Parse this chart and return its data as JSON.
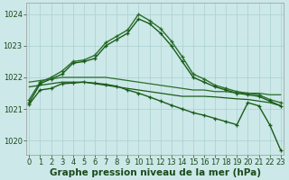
{
  "bg_color": "#cce8e8",
  "grid_color": "#aad0d0",
  "xlabel": "Graphe pression niveau de la mer (hPa)",
  "xlabel_fontsize": 7.5,
  "tick_fontsize": 6.0,
  "ylabel_ticks": [
    1020,
    1021,
    1022,
    1023,
    1024
  ],
  "xlim": [
    -0.3,
    23.3
  ],
  "ylim": [
    1019.55,
    1024.35
  ],
  "series": [
    {
      "x": [
        0,
        1,
        2,
        3,
        4,
        5,
        6,
        7,
        8,
        9,
        10,
        11,
        12,
        13,
        14,
        15,
        16,
        17,
        18,
        19,
        20,
        21,
        22,
        23
      ],
      "y": [
        1021.3,
        1021.85,
        1022.0,
        1022.2,
        1022.5,
        1022.55,
        1022.7,
        1023.1,
        1023.3,
        1023.5,
        1024.0,
        1023.8,
        1023.55,
        1023.15,
        1022.65,
        1022.1,
        1021.95,
        1021.75,
        1021.65,
        1021.55,
        1021.5,
        1021.45,
        1021.3,
        1021.2
      ],
      "color": "#2a6e2a",
      "lw": 1.0,
      "marker": "+"
    },
    {
      "x": [
        0,
        1,
        2,
        3,
        4,
        5,
        6,
        7,
        8,
        9,
        10,
        11,
        12,
        13,
        14,
        15,
        16,
        17,
        18,
        19,
        20,
        21,
        22,
        23
      ],
      "y": [
        1021.2,
        1021.8,
        1021.95,
        1022.1,
        1022.45,
        1022.5,
        1022.6,
        1023.0,
        1023.2,
        1023.4,
        1023.85,
        1023.7,
        1023.4,
        1023.0,
        1022.5,
        1022.0,
        1021.85,
        1021.7,
        1021.6,
        1021.5,
        1021.45,
        1021.4,
        1021.25,
        1021.1
      ],
      "color": "#1a5c1a",
      "lw": 1.0,
      "marker": "+"
    },
    {
      "x": [
        0,
        1,
        2,
        3,
        4,
        5,
        6,
        7,
        8,
        9,
        10,
        11,
        12,
        13,
        14,
        15,
        16,
        17,
        18,
        19,
        20,
        21,
        22,
        23
      ],
      "y": [
        1021.85,
        1021.9,
        1021.95,
        1022.0,
        1022.0,
        1022.0,
        1022.0,
        1022.0,
        1021.95,
        1021.9,
        1021.85,
        1021.8,
        1021.75,
        1021.7,
        1021.65,
        1021.6,
        1021.6,
        1021.55,
        1021.55,
        1021.5,
        1021.5,
        1021.5,
        1021.45,
        1021.45
      ],
      "color": "#2a6e2a",
      "lw": 0.9,
      "marker": null
    },
    {
      "x": [
        0,
        1,
        2,
        3,
        4,
        5,
        6,
        7,
        8,
        9,
        10,
        11,
        12,
        13,
        14,
        15,
        16,
        17,
        18,
        19,
        20,
        21,
        22,
        23
      ],
      "y": [
        1021.7,
        1021.75,
        1021.8,
        1021.85,
        1021.85,
        1021.85,
        1021.8,
        1021.75,
        1021.7,
        1021.65,
        1021.6,
        1021.55,
        1021.5,
        1021.45,
        1021.4,
        1021.4,
        1021.4,
        1021.38,
        1021.35,
        1021.32,
        1021.3,
        1021.25,
        1021.2,
        1021.1
      ],
      "color": "#1a5c1a",
      "lw": 0.9,
      "marker": null
    },
    {
      "x": [
        0,
        1,
        2,
        3,
        4,
        5,
        6,
        7,
        8,
        9,
        10,
        11,
        12,
        13,
        14,
        15,
        16,
        17,
        18,
        19,
        20,
        21,
        22,
        23
      ],
      "y": [
        1021.15,
        1021.6,
        1021.65,
        1021.8,
        1021.82,
        1021.85,
        1021.82,
        1021.78,
        1021.72,
        1021.6,
        1021.5,
        1021.38,
        1021.25,
        1021.12,
        1021.0,
        1020.88,
        1020.8,
        1020.7,
        1020.6,
        1020.5,
        1021.2,
        1021.1,
        1020.5,
        1019.7
      ],
      "color": "#1a5c1a",
      "lw": 1.0,
      "marker": "+"
    }
  ]
}
